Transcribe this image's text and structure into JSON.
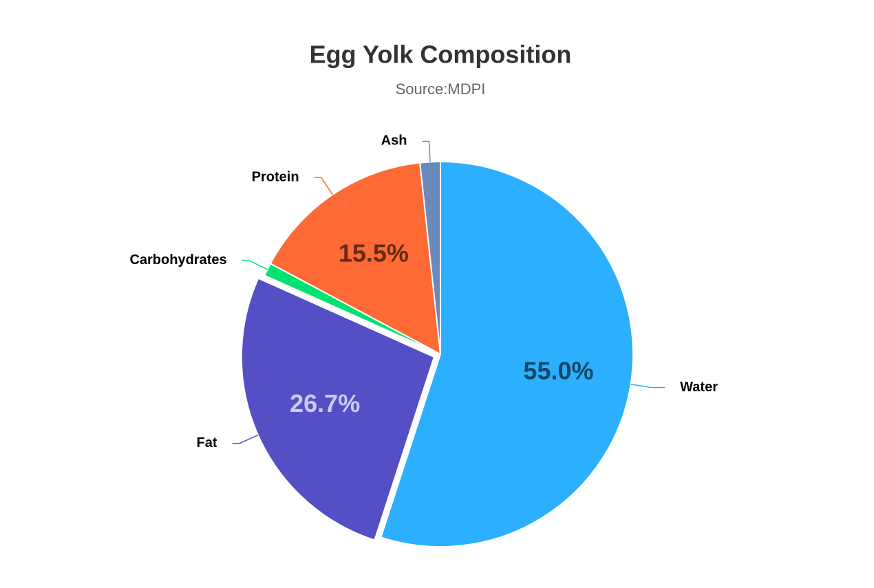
{
  "chart_data": {
    "type": "pie",
    "title": "Egg Yolk Composition",
    "subtitle": "Source:MDPI",
    "categories": [
      "Water",
      "Fat",
      "Carbohydrates",
      "Protein",
      "Ash"
    ],
    "values": [
      55.0,
      26.7,
      1.1,
      15.5,
      1.7
    ],
    "value_labels": [
      "55.0%",
      "26.7%",
      null,
      "15.5%",
      null
    ],
    "colors": [
      "#2caffe",
      "#544fc5",
      "#00e272",
      "#fe6a35",
      "#6b8abc"
    ],
    "exploded": "Fat"
  }
}
